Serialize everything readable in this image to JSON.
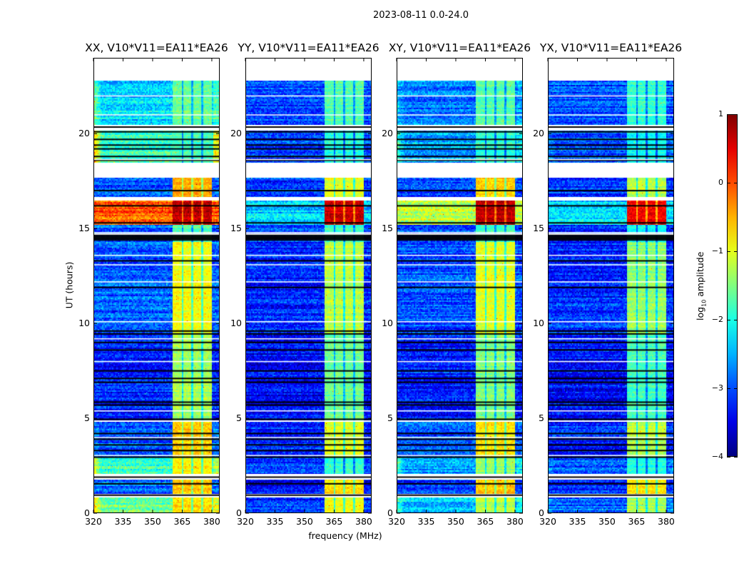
{
  "suptitle": "2023-08-11 0.0-24.0",
  "colors": {
    "gap": "#ffffff",
    "flagged": "#000000"
  },
  "chart_data": {
    "type": "heatmap",
    "title": "2023-08-11 0.0-24.0",
    "xlabel": "frequency (MHz)",
    "ylabel": "UT (hours)",
    "xlim": [
      320,
      384
    ],
    "ylim": [
      0,
      24
    ],
    "xticks": [
      320,
      335,
      350,
      365,
      380
    ],
    "yticks": [
      0,
      5,
      10,
      15,
      20
    ],
    "colormap": "jet",
    "colorbar": {
      "label_main": "log",
      "label_sub": "10",
      "label_rest": " amplitude",
      "range": [
        -4,
        1
      ],
      "ticks": [
        1,
        0,
        -1,
        -2,
        -3,
        -4
      ],
      "tick_labels": [
        "1",
        "0",
        "−1",
        "−2",
        "−3",
        "−4"
      ]
    },
    "strong_band_mhz": [
      360,
      380
    ],
    "band_dips_mhz": [
      365,
      370,
      375
    ],
    "gaps_hours": [
      [
        0.85,
        1.05
      ],
      [
        1.8,
        2.1
      ],
      [
        4.82,
        4.9
      ],
      [
        14.7,
        14.75
      ],
      [
        16.5,
        16.7
      ],
      [
        17.7,
        18.5
      ],
      [
        20.2,
        20.5
      ],
      [
        22.8,
        24
      ]
    ],
    "flagged_hours": [
      0.95,
      1.55,
      1.9,
      2.95,
      3.3,
      3.6,
      3.9,
      4.2,
      4.95,
      5.7,
      5.85,
      6.9,
      7.1,
      7.5,
      8.6,
      9.0,
      9.45,
      9.6,
      11.9,
      13.3,
      14.4,
      14.48,
      14.56,
      14.64,
      15.3,
      16.2,
      17.0,
      18.6,
      18.8,
      19.2,
      19.4,
      19.7,
      20.1,
      20.35
    ],
    "blank_lines_hours": [
      3.05,
      4.0,
      5.4,
      8.0,
      9.2,
      10.1,
      12.2,
      13.1,
      13.6,
      14.8,
      16.55,
      18.65,
      21.0,
      22.0
    ],
    "panels": [
      {
        "title": "XX, V10*V11=EA11*EA26",
        "segments": [
          [
            0,
            0.85,
            -1.6,
            -0.7,
            1.0
          ],
          [
            1.05,
            1.8,
            -2.9,
            -0.6,
            0
          ],
          [
            2.1,
            3.0,
            -1.8,
            -0.8,
            1.0
          ],
          [
            3.0,
            4.85,
            -2.9,
            -0.6,
            0.3
          ],
          [
            4.85,
            9.5,
            -3.2,
            -1.3,
            0
          ],
          [
            9.5,
            14.3,
            -2.9,
            -0.9,
            0
          ],
          [
            14.3,
            15.2,
            -2.9,
            -1.7,
            0
          ],
          [
            15.2,
            16.5,
            -0.1,
            0.7,
            0
          ],
          [
            16.7,
            17.7,
            -3.0,
            -0.5,
            0
          ],
          [
            18.5,
            20.2,
            -1.9,
            -1.8,
            1.5
          ],
          [
            20.5,
            22.8,
            -2.3,
            -1.6,
            0.8
          ]
        ]
      },
      {
        "title": "YY, V10*V11=EA11*EA26",
        "segments": [
          [
            0,
            0.85,
            -3.2,
            -1.0,
            0
          ],
          [
            1.05,
            1.8,
            -3.3,
            -0.7,
            0
          ],
          [
            2.1,
            3.0,
            -3.1,
            -1.9,
            0
          ],
          [
            3.0,
            4.85,
            -3.2,
            -1.0,
            0
          ],
          [
            4.85,
            9.5,
            -3.4,
            -1.6,
            0
          ],
          [
            9.5,
            14.3,
            -3.2,
            -1.2,
            0
          ],
          [
            14.3,
            15.2,
            -3.1,
            -1.9,
            0
          ],
          [
            15.2,
            16.5,
            -2.4,
            0.6,
            0
          ],
          [
            16.7,
            17.7,
            -3.1,
            -1.0,
            0
          ],
          [
            18.5,
            20.2,
            -3.1,
            -2.0,
            0
          ],
          [
            20.5,
            22.8,
            -3.0,
            -1.7,
            0
          ]
        ]
      },
      {
        "title": "XY, V10*V11=EA11*EA26",
        "segments": [
          [
            0,
            0.85,
            -2.4,
            -1.2,
            0.6
          ],
          [
            1.05,
            1.8,
            -3.1,
            -0.6,
            0
          ],
          [
            2.1,
            3.0,
            -2.6,
            -1.4,
            0.8
          ],
          [
            3.0,
            4.85,
            -3.0,
            -0.8,
            0
          ],
          [
            4.85,
            9.5,
            -3.3,
            -1.5,
            0
          ],
          [
            9.5,
            14.3,
            -3.0,
            -1.0,
            0
          ],
          [
            14.3,
            15.2,
            -3.0,
            -1.8,
            0
          ],
          [
            15.2,
            16.5,
            -1.2,
            0.7,
            0
          ],
          [
            16.7,
            17.7,
            -3.1,
            -0.7,
            0
          ],
          [
            18.5,
            20.2,
            -2.6,
            -1.9,
            0.8
          ],
          [
            20.5,
            22.8,
            -2.8,
            -1.7,
            0.4
          ]
        ]
      },
      {
        "title": "YX, V10*V11=EA11*EA26",
        "segments": [
          [
            0,
            0.85,
            -2.9,
            -1.3,
            0.3
          ],
          [
            1.05,
            1.8,
            -3.2,
            -0.8,
            0
          ],
          [
            2.1,
            3.0,
            -3.0,
            -2.0,
            0.3
          ],
          [
            3.0,
            4.85,
            -3.2,
            -1.2,
            0
          ],
          [
            4.85,
            9.5,
            -3.4,
            -1.8,
            0
          ],
          [
            9.5,
            14.3,
            -3.2,
            -1.4,
            0
          ],
          [
            14.3,
            15.2,
            -3.1,
            -2.0,
            0
          ],
          [
            15.2,
            16.5,
            -2.3,
            0.4,
            0
          ],
          [
            16.7,
            17.7,
            -3.1,
            -1.2,
            0
          ],
          [
            18.5,
            20.2,
            -3.0,
            -2.1,
            0.3
          ],
          [
            20.5,
            22.8,
            -3.0,
            -1.9,
            0
          ]
        ]
      }
    ]
  }
}
